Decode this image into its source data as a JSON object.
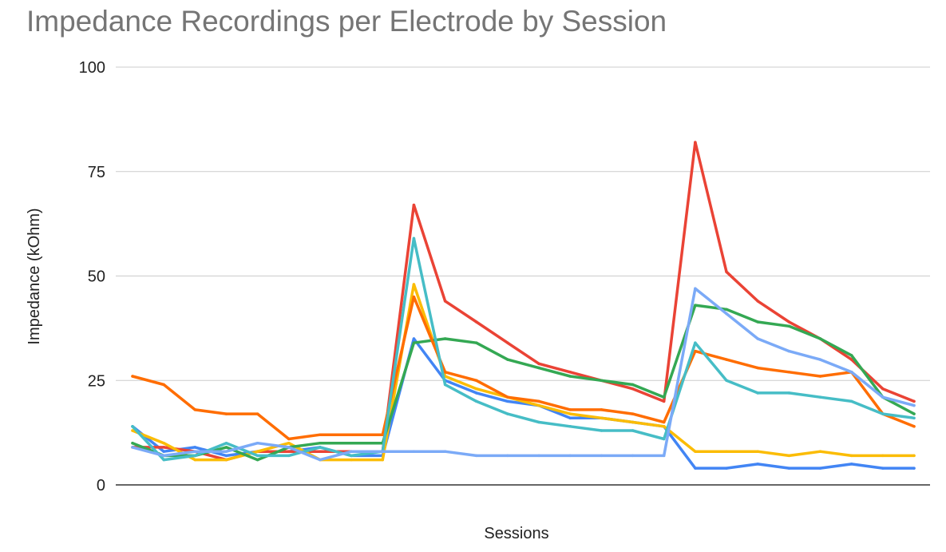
{
  "chart_data": {
    "type": "line",
    "title": "Impedance Recordings per Electrode by Session",
    "xlabel": "Sessions",
    "ylabel": "Impedance (kOhm)",
    "ylim": [
      0,
      100
    ],
    "yticks": [
      "0",
      "25",
      "50",
      "75",
      "100"
    ],
    "grid": true,
    "legend": "none",
    "x": [
      1,
      2,
      3,
      4,
      5,
      6,
      7,
      8,
      9,
      10,
      11,
      12,
      13,
      14,
      15,
      16,
      17,
      18,
      19,
      20,
      21,
      22,
      23,
      24,
      25,
      26
    ],
    "series": [
      {
        "color": "#4285F4",
        "values": [
          14,
          8,
          9,
          7,
          8,
          8,
          9,
          7,
          7,
          35,
          25,
          22,
          20,
          19,
          16,
          16,
          15,
          14,
          4,
          4,
          5,
          4,
          4,
          5,
          4,
          4
        ]
      },
      {
        "color": "#EA4335",
        "values": [
          9,
          9,
          8,
          6,
          8,
          8,
          8,
          8,
          8,
          67,
          44,
          39,
          34,
          29,
          27,
          25,
          23,
          20,
          82,
          51,
          44,
          39,
          35,
          30,
          23,
          20
        ]
      },
      {
        "color": "#FBBC04",
        "values": [
          13,
          10,
          6,
          6,
          8,
          10,
          6,
          6,
          6,
          48,
          26,
          23,
          21,
          19,
          17,
          16,
          15,
          14,
          8,
          8,
          8,
          7,
          8,
          7,
          7,
          7
        ]
      },
      {
        "color": "#34A853",
        "values": [
          10,
          7,
          7,
          9,
          6,
          9,
          10,
          10,
          10,
          34,
          35,
          34,
          30,
          28,
          26,
          25,
          24,
          21,
          43,
          42,
          39,
          38,
          35,
          31,
          21,
          17
        ]
      },
      {
        "color": "#FF6D01",
        "values": [
          26,
          24,
          18,
          17,
          17,
          11,
          12,
          12,
          12,
          45,
          27,
          25,
          21,
          20,
          18,
          18,
          17,
          15,
          32,
          30,
          28,
          27,
          26,
          27,
          17,
          14
        ]
      },
      {
        "color": "#46BDC6",
        "values": [
          14,
          6,
          7,
          10,
          7,
          7,
          9,
          7,
          8,
          59,
          24,
          20,
          17,
          15,
          14,
          13,
          13,
          11,
          34,
          25,
          22,
          22,
          21,
          20,
          17,
          16
        ]
      },
      {
        "color": "#7BAAF7",
        "values": [
          9,
          7,
          8,
          8,
          10,
          9,
          6,
          8,
          8,
          8,
          8,
          7,
          7,
          7,
          7,
          7,
          7,
          7,
          47,
          41,
          35,
          32,
          30,
          27,
          21,
          19
        ]
      }
    ]
  }
}
